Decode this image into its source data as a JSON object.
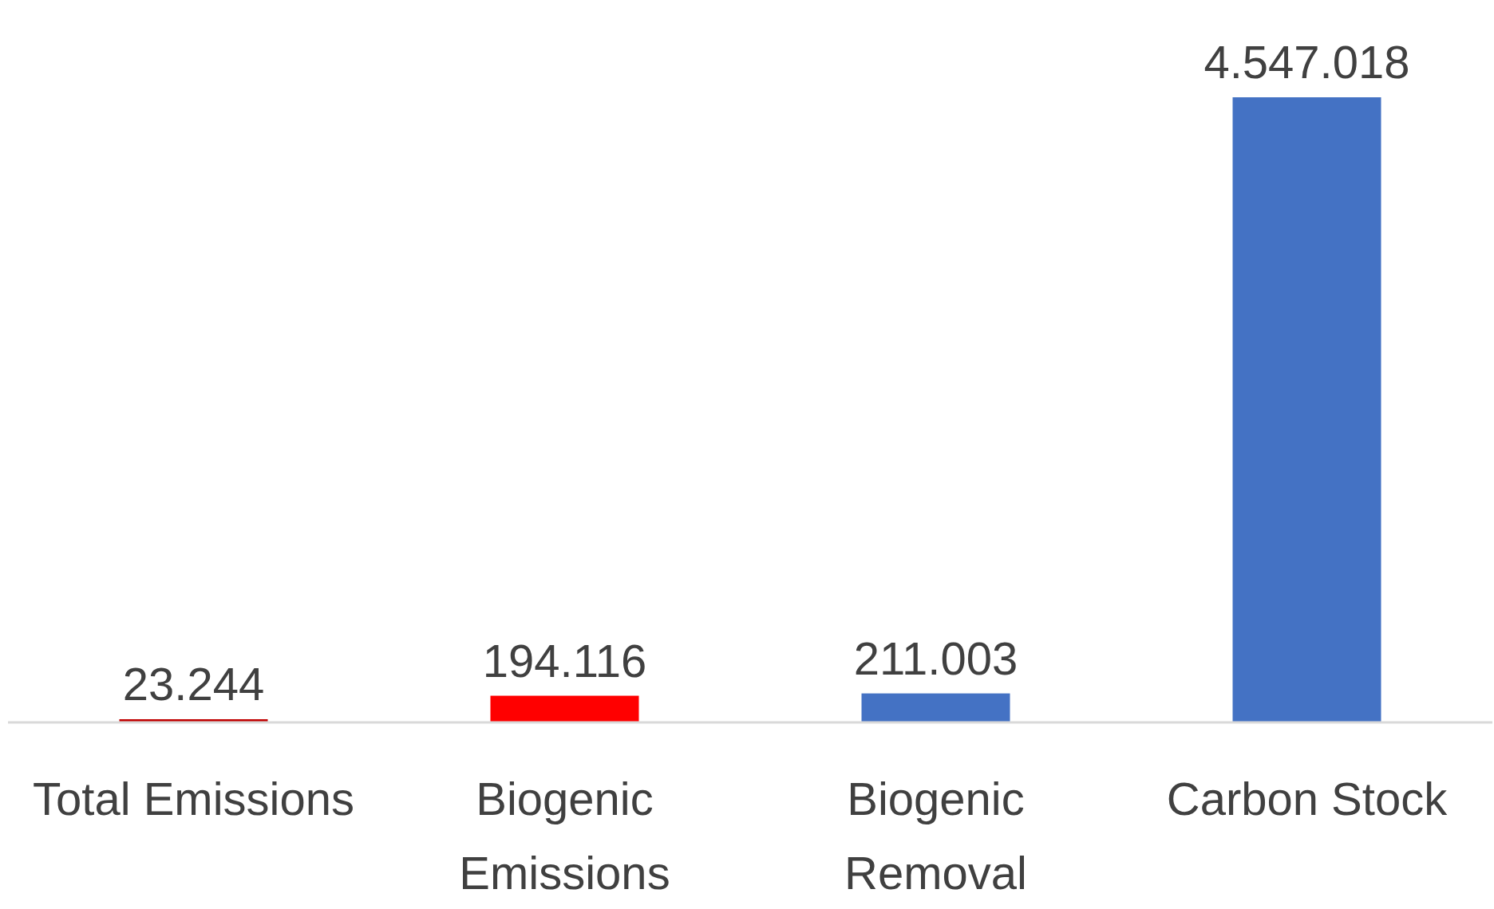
{
  "chart_data": {
    "type": "bar",
    "categories": [
      "Total Emissions",
      "Biogenic Emissions",
      "Biogenic Removal",
      "Carbon Stock"
    ],
    "values": [
      23244,
      194116,
      211003,
      4547018
    ],
    "colors": [
      "#c00000",
      "#ff0000",
      "#4472c4",
      "#4472c4"
    ],
    "value_labels": [
      "23.244",
      "194.116",
      "211.003",
      "4.547.018"
    ]
  }
}
